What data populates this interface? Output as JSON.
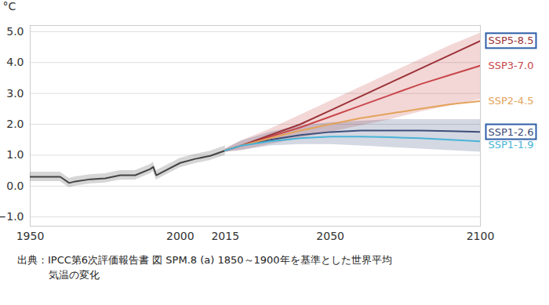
{
  "chart_data": {
    "type": "line",
    "ylabel": "°C",
    "caption": "出典：IPCC第6次評価報告書 図 SPM.8 (a) 1850～1900年を基準とした世界平均気温の変化",
    "x": [
      1950,
      1955,
      1960,
      1963,
      1965,
      1970,
      1975,
      1980,
      1985,
      1990,
      1991,
      1992,
      1995,
      2000,
      2005,
      2010,
      2015,
      2020,
      2030,
      2040,
      2050,
      2060,
      2070,
      2080,
      2090,
      2100
    ],
    "xlim": [
      1950,
      2100
    ],
    "xticks": [
      1950,
      2000,
      2015,
      2050,
      2100
    ],
    "ylim": [
      -1.3,
      5.2
    ],
    "yticks": [
      -1,
      0,
      1,
      2,
      3,
      4,
      5
    ],
    "grid": "y",
    "highlighted": [
      "SSP5-8.5",
      "SSP1-2.6"
    ],
    "series": [
      {
        "color": "#444444",
        "values": [
          0.3,
          0.3,
          0.3,
          0.1,
          0.15,
          0.22,
          0.25,
          0.35,
          0.35,
          0.55,
          0.62,
          0.35,
          0.5,
          0.75,
          0.88,
          0.98,
          1.15,
          null,
          null,
          null,
          null,
          null,
          null,
          null,
          null,
          null
        ],
        "lower": [
          0.15,
          0.15,
          0.15,
          -0.05,
          0.0,
          0.07,
          0.1,
          0.2,
          0.2,
          0.4,
          0.47,
          0.2,
          0.35,
          0.6,
          0.73,
          0.83,
          1.0,
          null,
          null,
          null,
          null,
          null,
          null,
          null,
          null,
          null
        ],
        "upper": [
          0.45,
          0.45,
          0.45,
          0.25,
          0.3,
          0.37,
          0.4,
          0.5,
          0.5,
          0.7,
          0.77,
          0.5,
          0.65,
          0.9,
          1.03,
          1.13,
          1.3,
          null,
          null,
          null,
          null,
          null,
          null,
          null,
          null,
          null
        ]
      },
      {
        "name": "SSP3-7.0",
        "color": "#c8474b",
        "values": [
          null,
          null,
          null,
          null,
          null,
          null,
          null,
          null,
          null,
          null,
          null,
          null,
          null,
          null,
          null,
          null,
          1.15,
          1.3,
          1.6,
          1.9,
          2.25,
          2.6,
          2.95,
          3.3,
          3.6,
          3.9
        ],
        "lower": [
          null,
          null,
          null,
          null,
          null,
          null,
          null,
          null,
          null,
          null,
          null,
          null,
          null,
          null,
          null,
          null,
          1.1,
          1.15,
          1.35,
          1.55,
          1.75,
          1.95,
          2.15,
          2.4,
          2.6,
          2.8
        ],
        "upper": [
          null,
          null,
          null,
          null,
          null,
          null,
          null,
          null,
          null,
          null,
          null,
          null,
          null,
          null,
          null,
          null,
          1.2,
          1.45,
          1.85,
          2.3,
          2.75,
          3.2,
          3.65,
          4.1,
          4.55,
          4.95
        ]
      },
      {
        "name": "SSP1-2.6",
        "color": "#3d4e7a",
        "values": [
          null,
          null,
          null,
          null,
          null,
          null,
          null,
          null,
          null,
          null,
          null,
          null,
          null,
          null,
          null,
          null,
          1.15,
          1.3,
          1.5,
          1.65,
          1.75,
          1.8,
          1.8,
          1.8,
          1.78,
          1.75
        ],
        "lower": [
          null,
          null,
          null,
          null,
          null,
          null,
          null,
          null,
          null,
          null,
          null,
          null,
          null,
          null,
          null,
          null,
          1.1,
          1.15,
          1.3,
          1.35,
          1.35,
          1.3,
          1.25,
          1.2,
          1.15,
          1.1
        ],
        "upper": [
          null,
          null,
          null,
          null,
          null,
          null,
          null,
          null,
          null,
          null,
          null,
          null,
          null,
          null,
          null,
          null,
          1.2,
          1.45,
          1.75,
          1.95,
          2.05,
          2.1,
          2.15,
          2.15,
          2.15,
          2.15
        ]
      },
      {
        "name": "SSP5-8.5",
        "color": "#9c3338",
        "values": [
          null,
          null,
          null,
          null,
          null,
          null,
          null,
          null,
          null,
          null,
          null,
          null,
          null,
          null,
          null,
          null,
          1.15,
          1.3,
          1.65,
          2.0,
          2.45,
          2.9,
          3.35,
          3.8,
          4.25,
          4.7
        ]
      },
      {
        "name": "SSP2-4.5",
        "color": "#e3a35a",
        "values": [
          null,
          null,
          null,
          null,
          null,
          null,
          null,
          null,
          null,
          null,
          null,
          null,
          null,
          null,
          null,
          null,
          1.15,
          1.3,
          1.55,
          1.8,
          2.0,
          2.2,
          2.35,
          2.5,
          2.65,
          2.75
        ]
      },
      {
        "name": "SSP1-1.9",
        "color": "#48b4d8",
        "values": [
          null,
          null,
          null,
          null,
          null,
          null,
          null,
          null,
          null,
          null,
          null,
          null,
          null,
          null,
          null,
          null,
          1.15,
          1.3,
          1.45,
          1.55,
          1.6,
          1.6,
          1.58,
          1.55,
          1.5,
          1.45
        ]
      }
    ]
  }
}
